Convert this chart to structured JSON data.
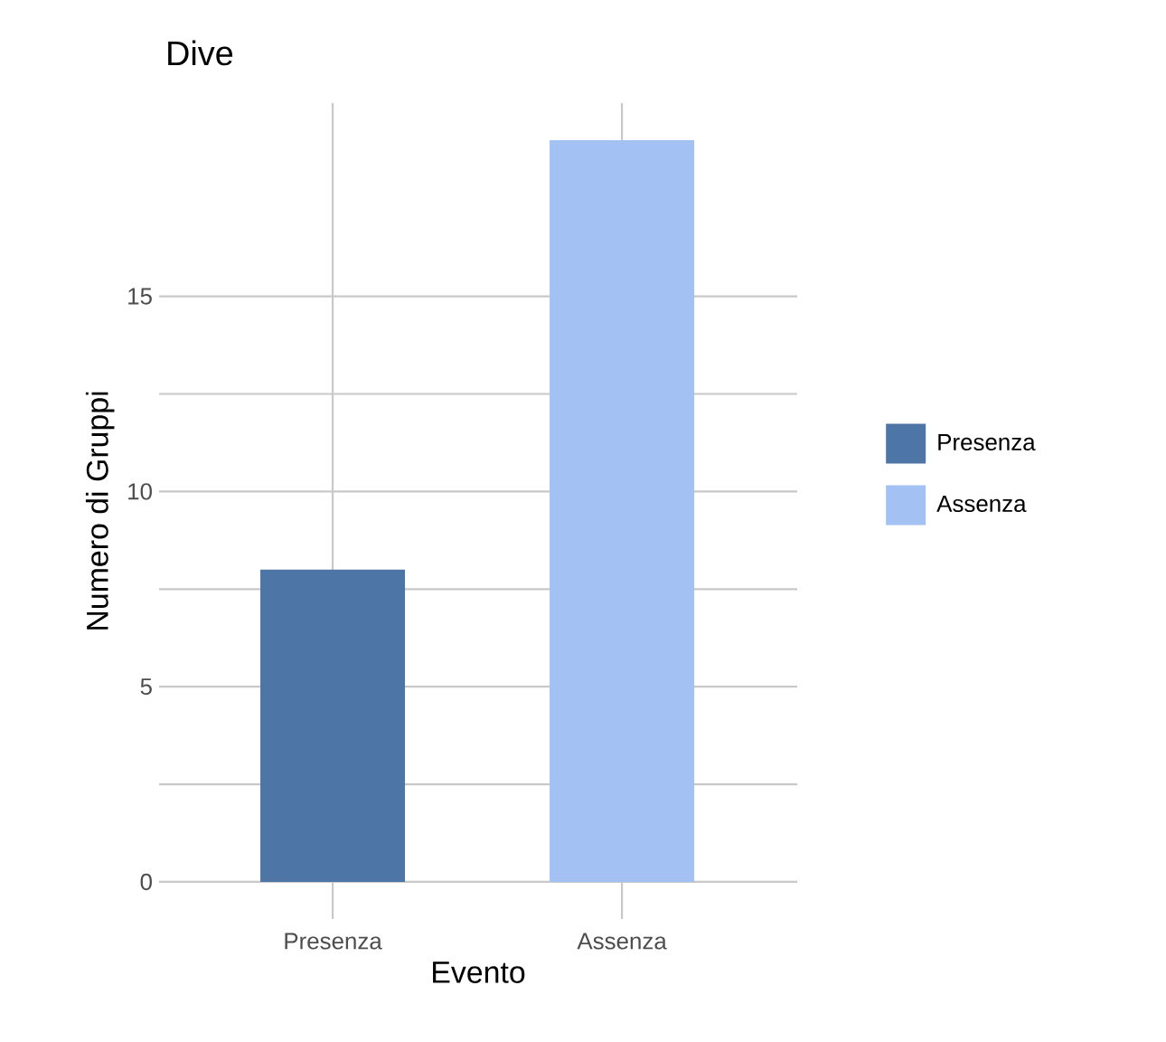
{
  "chart_data": {
    "type": "bar",
    "title": "Dive",
    "xlabel": "Evento",
    "ylabel": "Numero di Gruppi",
    "categories": [
      "Presenza",
      "Assenza"
    ],
    "series": [
      {
        "name": "Presenza",
        "color": "#4d76a6",
        "values": [
          8,
          null
        ]
      },
      {
        "name": "Assenza",
        "color": "#a3c1f2",
        "values": [
          null,
          19
        ]
      }
    ],
    "ylim": [
      -0.95,
      19.95
    ],
    "yticks": [
      0,
      5,
      10,
      15
    ],
    "grid": true,
    "legend": "right"
  }
}
